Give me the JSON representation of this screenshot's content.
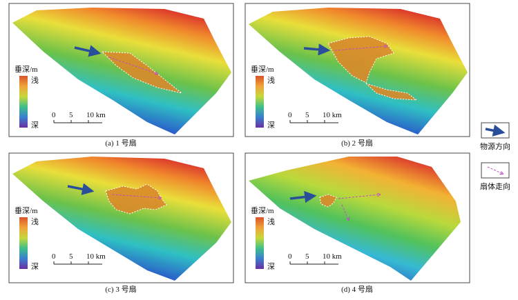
{
  "panels": [
    {
      "caption": "(a) 1 号扇",
      "depth_title": "垂深/m",
      "shallow": "浅",
      "deep": "深",
      "scale": [
        "0",
        "5",
        "10 km"
      ]
    },
    {
      "caption": "(b) 2 号扇",
      "depth_title": "垂深/m",
      "shallow": "浅",
      "deep": "深",
      "scale": [
        "0",
        "5",
        "10 km"
      ]
    },
    {
      "caption": "(c) 3 号扇",
      "depth_title": "垂深/m",
      "shallow": "浅",
      "deep": "深",
      "scale": [
        "0",
        "5",
        "10 km"
      ]
    },
    {
      "caption": "(d) 4 号扇",
      "depth_title": "垂深/m",
      "shallow": "浅",
      "deep": "深",
      "scale": [
        "0",
        "5",
        "10 km"
      ]
    }
  ],
  "legend": [
    {
      "label": "物源方向"
    },
    {
      "label": "扇体走向"
    }
  ]
}
